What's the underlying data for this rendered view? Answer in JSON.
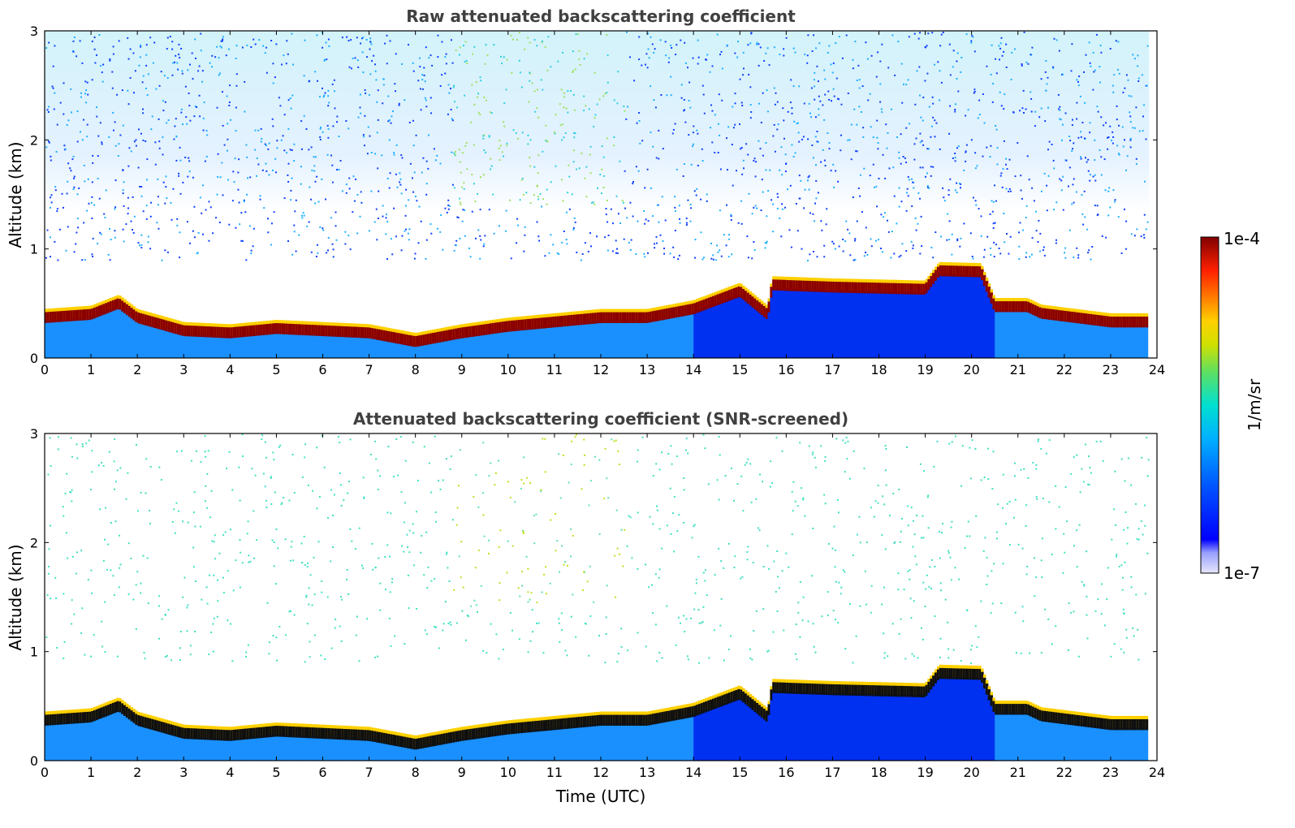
{
  "chart_data": [
    {
      "type": "heatmap",
      "title": "Raw attenuated backscattering coefficient",
      "xlabel": "",
      "ylabel": "Altitude (km)",
      "xlim": [
        0,
        24
      ],
      "ylim": [
        0,
        3
      ],
      "xticks": [
        "0",
        "1",
        "2",
        "3",
        "4",
        "5",
        "6",
        "7",
        "8",
        "9",
        "10",
        "11",
        "12",
        "13",
        "14",
        "15",
        "16",
        "17",
        "18",
        "19",
        "20",
        "21",
        "22",
        "23",
        "24"
      ],
      "yticks": [
        "0",
        "1",
        "2",
        "3"
      ],
      "layer_top_km": [
        [
          0,
          0.42
        ],
        [
          1,
          0.45
        ],
        [
          1.6,
          0.55
        ],
        [
          2,
          0.42
        ],
        [
          3,
          0.3
        ],
        [
          4,
          0.28
        ],
        [
          5,
          0.32
        ],
        [
          6,
          0.3
        ],
        [
          7,
          0.28
        ],
        [
          8,
          0.2
        ],
        [
          9,
          0.28
        ],
        [
          10,
          0.34
        ],
        [
          11,
          0.38
        ],
        [
          12,
          0.42
        ],
        [
          13,
          0.42
        ],
        [
          14,
          0.5
        ],
        [
          15,
          0.66
        ],
        [
          15.6,
          0.45
        ],
        [
          15.7,
          0.72
        ],
        [
          17,
          0.7
        ],
        [
          19,
          0.68
        ],
        [
          19.3,
          0.85
        ],
        [
          20.2,
          0.84
        ],
        [
          20.5,
          0.52
        ],
        [
          21.2,
          0.52
        ],
        [
          21.5,
          0.46
        ],
        [
          23,
          0.38
        ],
        [
          23.8,
          0.38
        ]
      ]
    },
    {
      "type": "heatmap",
      "title": "Attenuated backscattering coefficient (SNR-screened)",
      "xlabel": "Time (UTC)",
      "ylabel": "Altitude (km)",
      "xlim": [
        0,
        24
      ],
      "ylim": [
        0,
        3
      ],
      "xticks": [
        "0",
        "1",
        "2",
        "3",
        "4",
        "5",
        "6",
        "7",
        "8",
        "9",
        "10",
        "11",
        "12",
        "13",
        "14",
        "15",
        "16",
        "17",
        "18",
        "19",
        "20",
        "21",
        "22",
        "23",
        "24"
      ],
      "yticks": [
        "0",
        "1",
        "2",
        "3"
      ]
    }
  ],
  "colorbar": {
    "label": "1/m/sr",
    "max_label": "1e-4",
    "min_label": "1e-7",
    "colors": [
      "#e6e6fa",
      "#9aa0ff",
      "#0000ff",
      "#0050ff",
      "#00a0ff",
      "#00e0e0",
      "#40e080",
      "#b0e000",
      "#ffe000",
      "#ffa000",
      "#ff4000",
      "#d00000",
      "#800000"
    ]
  }
}
